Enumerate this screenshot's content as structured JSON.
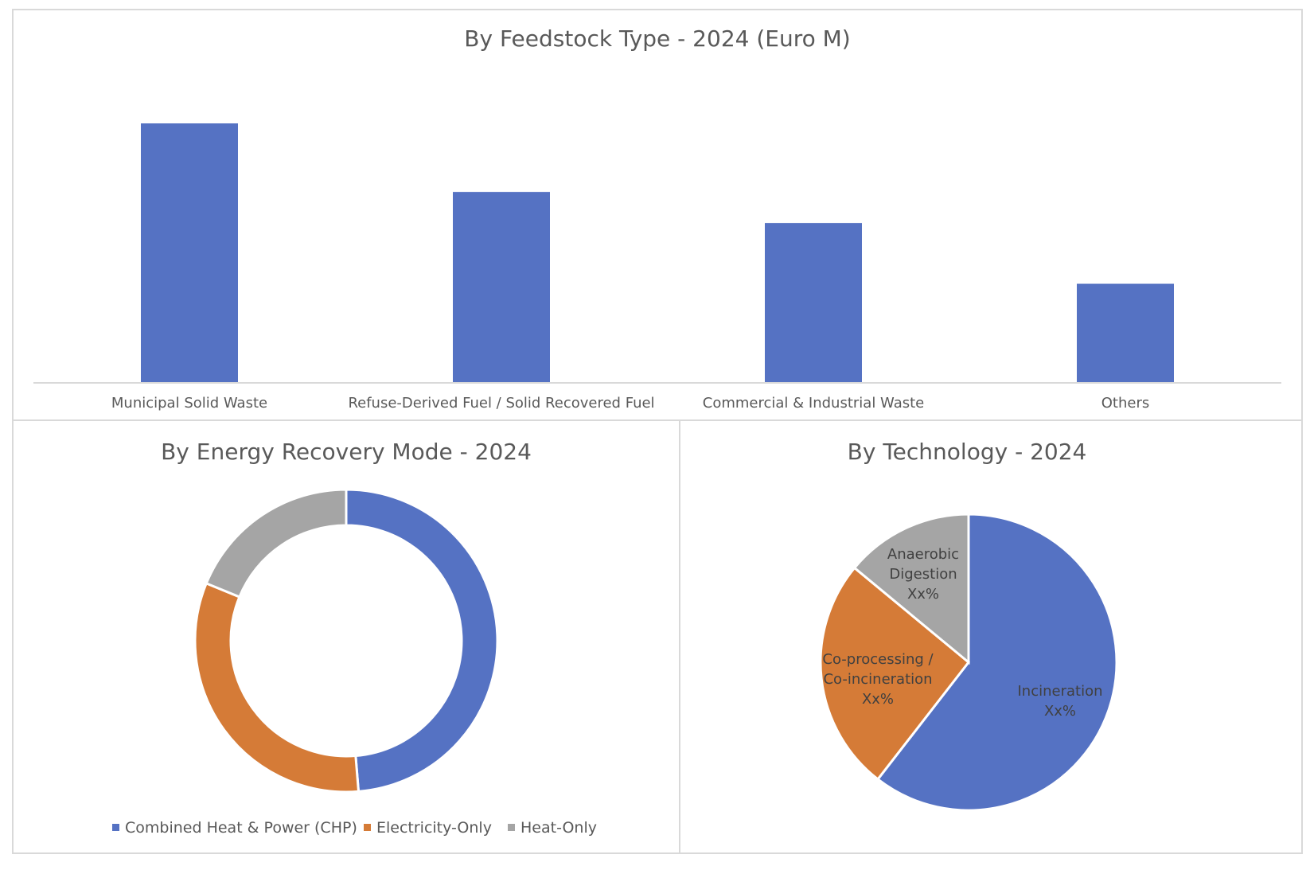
{
  "chart_data": [
    {
      "type": "bar",
      "title": "By Feedstock Type - 2024 (Euro M)",
      "categories": [
        "Municipal Solid Waste",
        "Refuse-Derived Fuel / Solid Recovered Fuel",
        "Commercial & Industrial Waste",
        "Others"
      ],
      "values": [
        100,
        73.5,
        61.5,
        38
      ],
      "ylim": [
        0,
        100
      ],
      "grid": false,
      "value_labels": false,
      "colors": [
        "#5572c3"
      ]
    },
    {
      "type": "pie",
      "style": "donut",
      "title": "By Energy Recovery Mode - 2024",
      "labels": [
        "Combined Heat & Power (CHP)",
        "Electricity-Only",
        "Heat-Only"
      ],
      "values": [
        48.7,
        32.5,
        18.8
      ],
      "colors": [
        "#5572c3",
        "#d57b37",
        "#a5a5a5"
      ],
      "legend": "bottom"
    },
    {
      "type": "pie",
      "title": "By Technology - 2024",
      "labels": [
        "Incineration",
        "Co-processing / Co-incineration",
        "Anaerobic Digestion"
      ],
      "value_labels": [
        "Xx%",
        "Xx%",
        "Xx%"
      ],
      "values": [
        60.5,
        25.5,
        14
      ],
      "colors": [
        "#5572c3",
        "#d57b37",
        "#a5a5a5"
      ],
      "legend": "none"
    }
  ]
}
